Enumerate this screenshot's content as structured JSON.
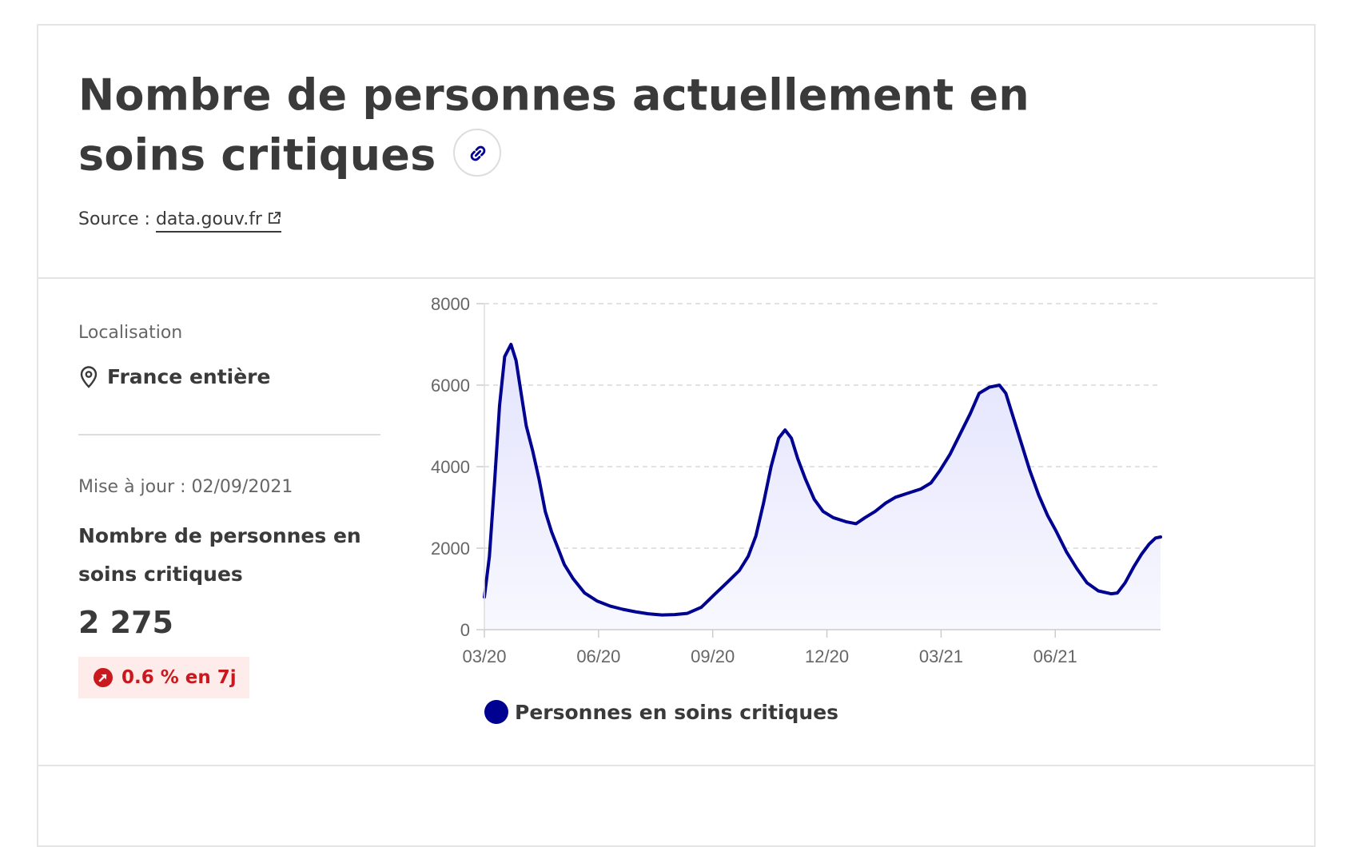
{
  "header": {
    "title": "Nombre de personnes actuellement en soins critiques",
    "link_icon": "link-icon",
    "source_prefix": "Source : ",
    "source_link": "data.gouv.fr",
    "external_icon": "external-link-icon"
  },
  "sidebar": {
    "localisation_label": "Localisation",
    "localisation_value": "France entière",
    "location_icon": "map-pin-icon",
    "update_text": "Mise à jour : 02/09/2021",
    "metric_label": "Nombre de personnes en soins critiques",
    "metric_value": "2 275",
    "trend_text": "0.6 % en 7j",
    "trend_icon": "arrow-up-right-circle-icon"
  },
  "colors": {
    "series": "#000091",
    "trend_text": "#c9191e",
    "trend_bg": "#fdecea"
  },
  "chart_data": {
    "type": "area",
    "x_ticks": [
      "03/20",
      "06/20",
      "09/20",
      "12/20",
      "03/21",
      "06/21"
    ],
    "y_ticks": [
      0,
      2000,
      4000,
      6000,
      8000
    ],
    "ylim": [
      0,
      8000
    ],
    "xlim": [
      "2020-03-18",
      "2021-09-02"
    ],
    "grid": "horizontal dashed",
    "legend_position": "bottom",
    "series": [
      {
        "name": "Personnes en soins critiques",
        "color": "#000091",
        "points": [
          [
            "2020-03-18",
            800
          ],
          [
            "2020-03-22",
            1800
          ],
          [
            "2020-03-26",
            3600
          ],
          [
            "2020-03-30",
            5500
          ],
          [
            "2020-04-03",
            6700
          ],
          [
            "2020-04-08",
            7000
          ],
          [
            "2020-04-12",
            6600
          ],
          [
            "2020-04-16",
            5800
          ],
          [
            "2020-04-20",
            5000
          ],
          [
            "2020-04-25",
            4400
          ],
          [
            "2020-04-30",
            3700
          ],
          [
            "2020-05-05",
            2900
          ],
          [
            "2020-05-10",
            2400
          ],
          [
            "2020-05-15",
            2000
          ],
          [
            "2020-05-20",
            1600
          ],
          [
            "2020-05-27",
            1250
          ],
          [
            "2020-06-05",
            900
          ],
          [
            "2020-06-15",
            700
          ],
          [
            "2020-06-25",
            580
          ],
          [
            "2020-07-05",
            500
          ],
          [
            "2020-07-15",
            440
          ],
          [
            "2020-07-25",
            390
          ],
          [
            "2020-08-05",
            360
          ],
          [
            "2020-08-15",
            370
          ],
          [
            "2020-08-25",
            400
          ],
          [
            "2020-09-05",
            550
          ],
          [
            "2020-09-15",
            850
          ],
          [
            "2020-09-25",
            1150
          ],
          [
            "2020-10-05",
            1450
          ],
          [
            "2020-10-12",
            1800
          ],
          [
            "2020-10-18",
            2300
          ],
          [
            "2020-10-24",
            3100
          ],
          [
            "2020-10-30",
            4000
          ],
          [
            "2020-11-05",
            4700
          ],
          [
            "2020-11-10",
            4900
          ],
          [
            "2020-11-15",
            4700
          ],
          [
            "2020-11-20",
            4200
          ],
          [
            "2020-11-26",
            3700
          ],
          [
            "2020-12-03",
            3200
          ],
          [
            "2020-12-10",
            2900
          ],
          [
            "2020-12-18",
            2750
          ],
          [
            "2020-12-28",
            2650
          ],
          [
            "2021-01-05",
            2600
          ],
          [
            "2021-01-12",
            2750
          ],
          [
            "2021-01-20",
            2900
          ],
          [
            "2021-01-28",
            3100
          ],
          [
            "2021-02-05",
            3250
          ],
          [
            "2021-02-15",
            3350
          ],
          [
            "2021-02-25",
            3450
          ],
          [
            "2021-03-05",
            3600
          ],
          [
            "2021-03-12",
            3900
          ],
          [
            "2021-03-20",
            4300
          ],
          [
            "2021-03-28",
            4800
          ],
          [
            "2021-04-05",
            5300
          ],
          [
            "2021-04-12",
            5800
          ],
          [
            "2021-04-20",
            5950
          ],
          [
            "2021-04-28",
            6000
          ],
          [
            "2021-05-03",
            5800
          ],
          [
            "2021-05-08",
            5300
          ],
          [
            "2021-05-15",
            4600
          ],
          [
            "2021-05-22",
            3900
          ],
          [
            "2021-05-29",
            3300
          ],
          [
            "2021-06-05",
            2800
          ],
          [
            "2021-06-12",
            2400
          ],
          [
            "2021-06-20",
            1900
          ],
          [
            "2021-06-28",
            1500
          ],
          [
            "2021-07-06",
            1150
          ],
          [
            "2021-07-15",
            950
          ],
          [
            "2021-07-25",
            880
          ],
          [
            "2021-07-30",
            900
          ],
          [
            "2021-08-05",
            1150
          ],
          [
            "2021-08-12",
            1550
          ],
          [
            "2021-08-18",
            1850
          ],
          [
            "2021-08-24",
            2100
          ],
          [
            "2021-08-29",
            2250
          ],
          [
            "2021-09-02",
            2275
          ]
        ]
      }
    ]
  }
}
